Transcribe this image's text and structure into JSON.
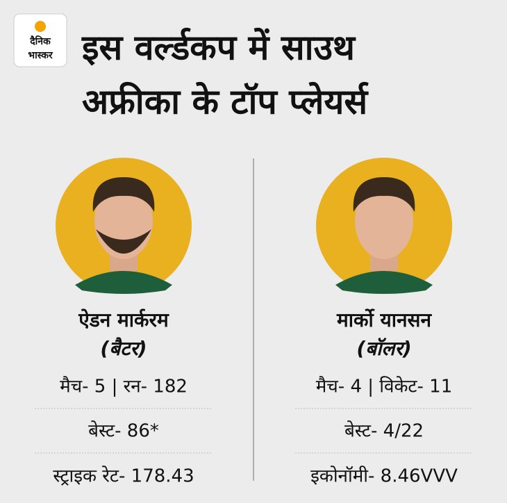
{
  "logo": {
    "line1": "दैनिक",
    "line2": "भास्कर"
  },
  "title": {
    "line1": "इस वर्ल्डकप में साउथ",
    "line2": "अफ्रीका के टॉप प्लेयर्स"
  },
  "players": [
    {
      "name": "ऐडन मार्करम",
      "role": "(बैटर)",
      "stats": [
        "मैच- 5 | रन- 182",
        "बेस्ट- 86*",
        "स्ट्राइक रेट- 178.43"
      ]
    },
    {
      "name": "मार्को यानसन",
      "role": "(बॉलर)",
      "stats": [
        "मैच- 4 | विकेट- 11",
        "बेस्ट- 4/22",
        "इकोनॉमी- 8.46VVV"
      ]
    }
  ]
}
